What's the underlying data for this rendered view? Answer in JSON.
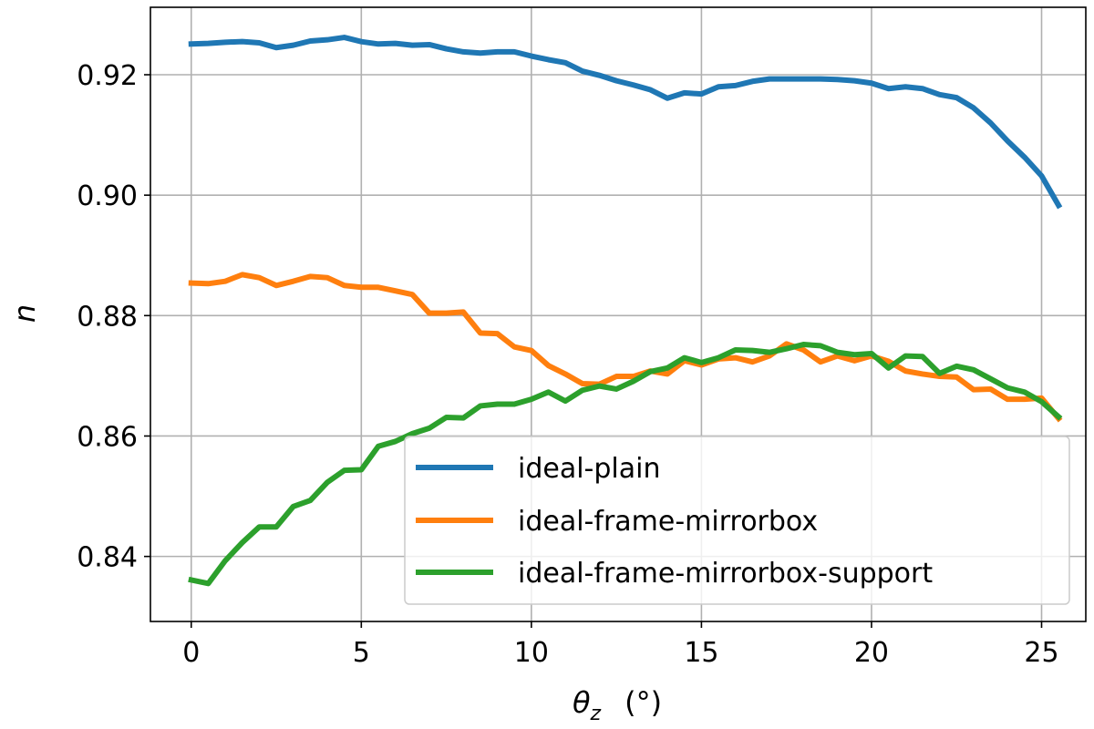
{
  "chart_data": {
    "type": "line",
    "title": "",
    "xlabel": {
      "symbol": "θ",
      "subscript": "z",
      "unit": "(°)"
    },
    "ylabel": "n",
    "xlim": [
      -1.2,
      26.3
    ],
    "ylim": [
      0.8292,
      0.9312
    ],
    "xticks": [
      0,
      5,
      10,
      15,
      20,
      25
    ],
    "xtick_labels": [
      "0",
      "5",
      "10",
      "15",
      "20",
      "25"
    ],
    "yticks": [
      0.84,
      0.86,
      0.88,
      0.9,
      0.92
    ],
    "ytick_labels": [
      "0.84",
      "0.86",
      "0.88",
      "0.90",
      "0.92"
    ],
    "grid": true,
    "legend_position": "lower-right",
    "x": [
      0,
      0.5,
      1,
      1.5,
      2,
      2.5,
      3,
      3.5,
      4,
      4.5,
      5,
      5.5,
      6,
      6.5,
      7,
      7.5,
      8,
      8.5,
      9,
      9.5,
      10,
      10.5,
      11,
      11.5,
      12,
      12.5,
      13,
      13.5,
      14,
      14.5,
      15,
      15.5,
      16,
      16.5,
      17,
      17.5,
      18,
      18.5,
      19,
      19.5,
      20,
      20.5,
      21,
      21.5,
      22,
      22.5,
      23,
      23.5,
      24,
      24.5,
      25,
      25.5
    ],
    "series": [
      {
        "name": "ideal-plain",
        "color": "#1f77b4",
        "values": [
          0.9251,
          0.9252,
          0.9254,
          0.9255,
          0.9253,
          0.9245,
          0.9249,
          0.9256,
          0.9258,
          0.9262,
          0.9255,
          0.9251,
          0.9252,
          0.9249,
          0.925,
          0.9243,
          0.9238,
          0.9236,
          0.9238,
          0.9238,
          0.9231,
          0.9225,
          0.922,
          0.9206,
          0.9199,
          0.919,
          0.9183,
          0.9175,
          0.9161,
          0.917,
          0.9168,
          0.918,
          0.9182,
          0.9189,
          0.9193,
          0.9193,
          0.9193,
          0.9193,
          0.9192,
          0.919,
          0.9186,
          0.9177,
          0.918,
          0.9177,
          0.9167,
          0.9162,
          0.9145,
          0.912,
          0.909,
          0.9063,
          0.9032,
          0.8983
        ]
      },
      {
        "name": "ideal-frame-mirrorbox",
        "color": "#ff7f0e",
        "values": [
          0.8854,
          0.8853,
          0.8857,
          0.8868,
          0.8863,
          0.885,
          0.8857,
          0.8865,
          0.8863,
          0.885,
          0.8847,
          0.8847,
          0.8841,
          0.8835,
          0.8804,
          0.8804,
          0.8806,
          0.8771,
          0.877,
          0.8748,
          0.8742,
          0.8717,
          0.8703,
          0.8687,
          0.8686,
          0.8699,
          0.8699,
          0.8708,
          0.8703,
          0.8725,
          0.8718,
          0.8728,
          0.873,
          0.8723,
          0.8733,
          0.8753,
          0.8743,
          0.8723,
          0.8733,
          0.8725,
          0.8733,
          0.8724,
          0.8708,
          0.8703,
          0.8699,
          0.8698,
          0.8677,
          0.8678,
          0.8661,
          0.8661,
          0.8663,
          0.8629
        ]
      },
      {
        "name": "ideal-frame-mirrorbox-support",
        "color": "#2ca02c",
        "values": [
          0.8361,
          0.8355,
          0.8393,
          0.8423,
          0.8449,
          0.8449,
          0.8483,
          0.8493,
          0.8523,
          0.8543,
          0.8544,
          0.8583,
          0.8591,
          0.8604,
          0.8613,
          0.8631,
          0.863,
          0.865,
          0.8653,
          0.8653,
          0.8661,
          0.8673,
          0.8658,
          0.8676,
          0.8683,
          0.8678,
          0.8691,
          0.8707,
          0.8713,
          0.873,
          0.8722,
          0.873,
          0.8743,
          0.8742,
          0.8739,
          0.8745,
          0.8752,
          0.875,
          0.8739,
          0.8735,
          0.8737,
          0.8713,
          0.8733,
          0.8732,
          0.8704,
          0.8716,
          0.871,
          0.8695,
          0.868,
          0.8673,
          0.8657,
          0.8632
        ]
      }
    ]
  }
}
